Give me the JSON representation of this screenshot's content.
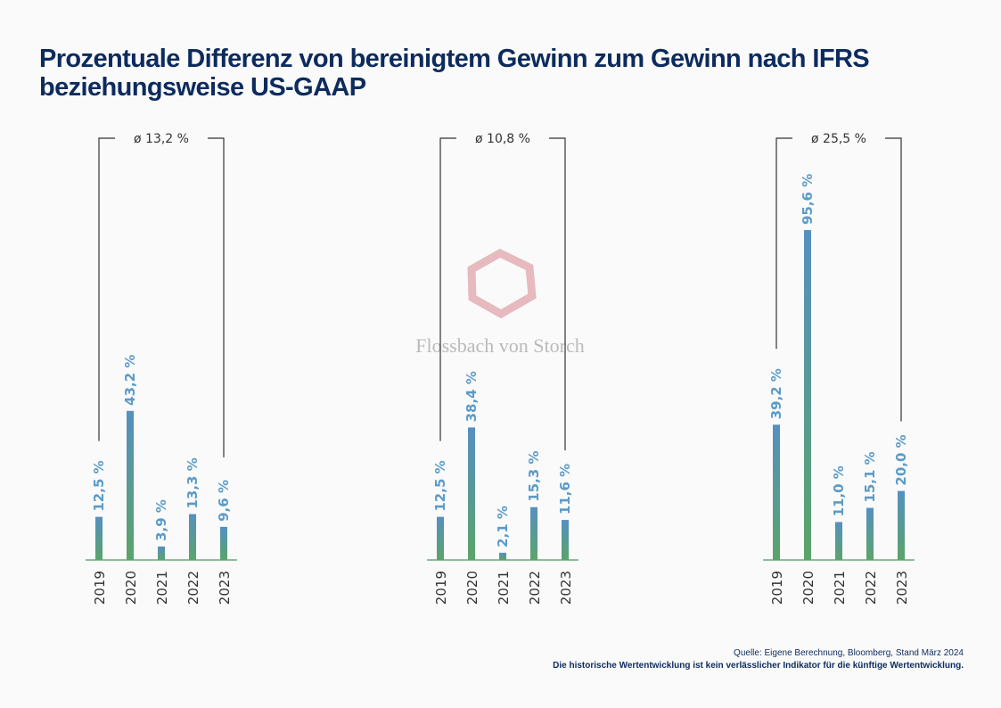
{
  "title": "Prozentuale Differenz von bereinigtem Gewinn zum Gewinn nach IFRS beziehungsweise US-GAAP",
  "source": "Quelle: Eigene Berechnung, Bloomberg, Stand März 2024",
  "disclaimer": "Die historische Wertentwicklung ist kein verlässlicher Indikator für die künftige Wertentwicklung.",
  "watermark": {
    "logo_text": "Flossbach von Storch",
    "color": "#e0a8ae"
  },
  "colors": {
    "bar_top": "#5590c0",
    "bar_bottom": "#5aa46a",
    "label": "#5b9bc8",
    "baseline": "#6aaa78",
    "bracket": "#333333"
  },
  "chart_data": [
    {
      "type": "bar",
      "categories": [
        "2019",
        "2020",
        "2021",
        "2022",
        "2023"
      ],
      "values": [
        12.5,
        43.2,
        3.9,
        13.3,
        9.6
      ],
      "labels": [
        "12,5 %",
        "43,2 %",
        "3,9 %",
        "13,3 %",
        "9,6 %"
      ],
      "average_label": "ø 13,2 %",
      "ylim": [
        0,
        100
      ]
    },
    {
      "type": "bar",
      "categories": [
        "2019",
        "2020",
        "2021",
        "2022",
        "2023"
      ],
      "values": [
        12.5,
        38.4,
        2.1,
        15.3,
        11.6
      ],
      "labels": [
        "12,5 %",
        "38,4 %",
        "2,1 %",
        "15,3 %",
        "11,6 %"
      ],
      "average_label": "ø 10,8 %",
      "ylim": [
        0,
        100
      ]
    },
    {
      "type": "bar",
      "categories": [
        "2019",
        "2020",
        "2021",
        "2022",
        "2023"
      ],
      "values": [
        39.2,
        95.6,
        11.0,
        15.1,
        20.0
      ],
      "labels": [
        "39,2 %",
        "95,6 %",
        "11,0 %",
        "15,1 %",
        "20,0 %"
      ],
      "average_label": "ø 25,5 %",
      "ylim": [
        0,
        100
      ]
    }
  ]
}
